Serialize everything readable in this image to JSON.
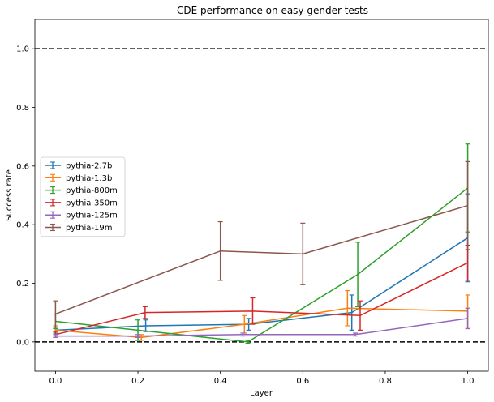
{
  "chart_data": {
    "type": "line",
    "title": "CDE performance on easy gender tests",
    "xlabel": "Layer",
    "ylabel": "Success rate",
    "xlim": [
      -0.05,
      1.05
    ],
    "ylim": [
      -0.1,
      1.1
    ],
    "xticks": [
      "0.0",
      "0.2",
      "0.4",
      "0.6",
      "0.8",
      "1.0"
    ],
    "yticks": [
      "0.0",
      "0.2",
      "0.4",
      "0.6",
      "0.8",
      "1.0"
    ],
    "grid": false,
    "legend_position": "center-left",
    "reference_lines": [
      0.0,
      1.0
    ],
    "series": [
      {
        "name": "pythia-2.7b",
        "color": "#1f77b4",
        "x": [
          0.0,
          0.2188,
          0.4688,
          0.7188,
          1.0
        ],
        "y": [
          0.04,
          0.055,
          0.06,
          0.1,
          0.355
        ],
        "err": [
          0.01,
          0.02,
          0.02,
          0.06,
          0.15
        ]
      },
      {
        "name": "pythia-1.3b",
        "color": "#ff7f0e",
        "x": [
          0.0,
          0.2083,
          0.4583,
          0.7083,
          1.0
        ],
        "y": [
          0.04,
          0.015,
          0.06,
          0.115,
          0.105
        ],
        "err": [
          0.015,
          0.01,
          0.03,
          0.06,
          0.055
        ]
      },
      {
        "name": "pythia-800m",
        "color": "#2ca02c",
        "x": [
          0.0,
          0.2,
          0.4667,
          0.7333,
          1.0
        ],
        "y": [
          0.07,
          0.04,
          0.0,
          0.23,
          0.525
        ],
        "err": [
          0.025,
          0.035,
          0.005,
          0.11,
          0.15
        ]
      },
      {
        "name": "pythia-350m",
        "color": "#d62728",
        "x": [
          0.0,
          0.2174,
          0.4783,
          0.7391,
          1.0
        ],
        "y": [
          0.025,
          0.1,
          0.105,
          0.09,
          0.27
        ],
        "err": [
          0.01,
          0.02,
          0.045,
          0.05,
          0.06
        ]
      },
      {
        "name": "pythia-125m",
        "color": "#9467bd",
        "x": [
          0.0,
          0.2,
          0.4545,
          0.7273,
          1.0
        ],
        "y": [
          0.02,
          0.02,
          0.025,
          0.025,
          0.08
        ],
        "err": [
          0.005,
          0.005,
          0.005,
          0.005,
          0.035
        ]
      },
      {
        "name": "pythia-19m",
        "color": "#8c564b",
        "x": [
          0.0,
          0.4,
          0.6,
          1.0
        ],
        "y": [
          0.095,
          0.31,
          0.3,
          0.465
        ],
        "err": [
          0.045,
          0.1,
          0.105,
          0.15
        ]
      }
    ]
  }
}
